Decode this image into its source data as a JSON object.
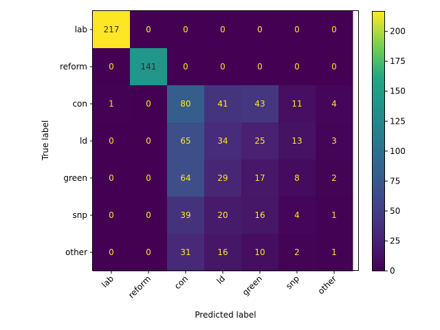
{
  "chart_data": {
    "type": "heatmap",
    "title": "",
    "xlabel": "Predicted label",
    "ylabel": "True label",
    "x_categories": [
      "lab",
      "reform",
      "con",
      "ld",
      "green",
      "snp",
      "other"
    ],
    "y_categories": [
      "lab",
      "reform",
      "con",
      "ld",
      "green",
      "snp",
      "other"
    ],
    "values": [
      [
        217,
        0,
        0,
        0,
        0,
        0,
        0
      ],
      [
        0,
        141,
        0,
        0,
        0,
        0,
        0
      ],
      [
        1,
        0,
        80,
        41,
        43,
        11,
        4
      ],
      [
        0,
        0,
        65,
        34,
        25,
        13,
        3
      ],
      [
        0,
        0,
        64,
        29,
        17,
        8,
        2
      ],
      [
        0,
        0,
        39,
        20,
        16,
        4,
        1
      ],
      [
        0,
        0,
        31,
        16,
        10,
        2,
        1
      ]
    ],
    "colormap": "viridis",
    "vmin": 0,
    "vmax": 217,
    "colorbar_ticks": [
      0,
      25,
      50,
      75,
      100,
      125,
      150,
      175,
      200
    ],
    "x_tick_rotation": 45,
    "grid": false,
    "colorbar": "right"
  }
}
